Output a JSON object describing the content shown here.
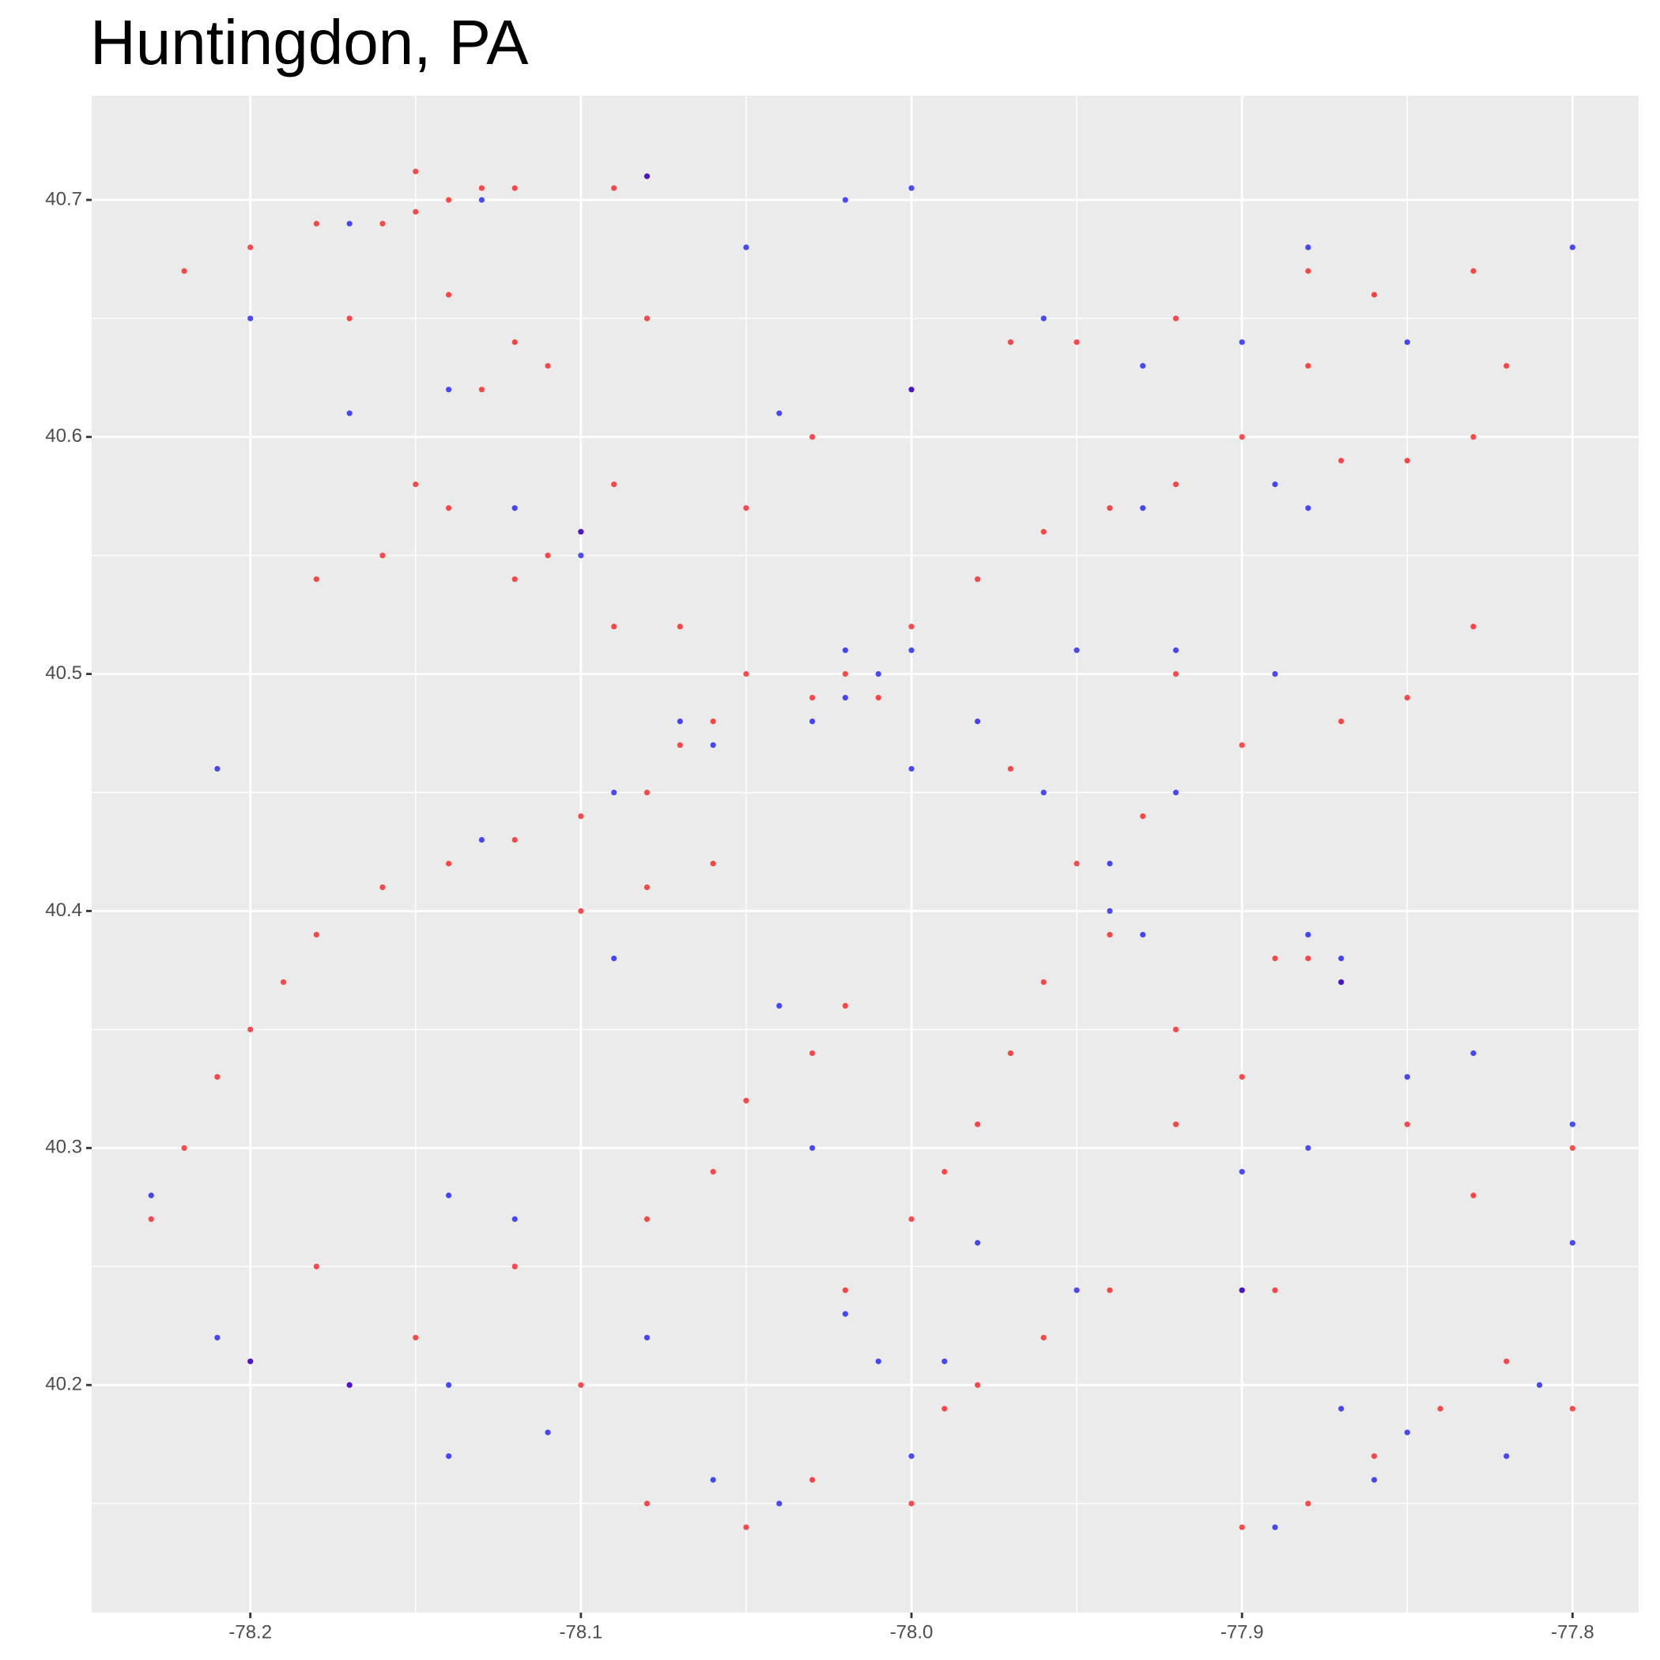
{
  "chart_data": {
    "type": "scatter",
    "title": "Huntingdon, PA",
    "xlim": [
      -78.248,
      -77.78
    ],
    "ylim": [
      40.104,
      40.744
    ],
    "xticks": [
      -78.2,
      -78.1,
      {
        "value": -78,
        "label": "-78.0"
      },
      -77.9,
      -77.8
    ],
    "yticks": [
      40.2,
      40.3,
      40.4,
      40.5,
      40.6,
      40.7
    ],
    "grid": true,
    "alpha": 0.7,
    "series": [
      {
        "color": "#ff0000",
        "x": [
          -78.22,
          -78.2,
          -78.18,
          -78.16,
          -78.15,
          -78.14,
          -78.13,
          -78.12,
          -78.15,
          -78.08,
          -78.09,
          -78.17,
          -78.14,
          -78.12,
          -78.13,
          -78.11,
          -78.08,
          -78.15,
          -78.14,
          -78.16,
          -78.18,
          -78.1,
          -78.11,
          -78.12,
          -78.09,
          -78.05,
          -78.03,
          -78.0,
          -77.97,
          -77.95,
          -77.92,
          -77.88,
          -77.86,
          -77.83,
          -77.82,
          -77.88,
          -77.9,
          -77.87,
          -77.85,
          -77.83,
          -77.98,
          -77.96,
          -77.94,
          -77.92,
          -78.0,
          -78.02,
          -78.01,
          -78.03,
          -78.06,
          -78.07,
          -78.08,
          -78.1,
          -78.12,
          -78.14,
          -78.16,
          -78.18,
          -78.19,
          -78.2,
          -78.21,
          -78.22,
          -78.23,
          -78.1,
          -78.08,
          -78.06,
          -78.05,
          -78.07,
          -78.09,
          -77.97,
          -77.98,
          -77.99,
          -78.0,
          -78.02,
          -78.03,
          -78.05,
          -78.06,
          -78.08,
          -77.98,
          -77.99,
          -77.96,
          -77.94,
          -77.9,
          -77.89,
          -77.88,
          -77.89,
          -77.87,
          -77.9,
          -77.92,
          -77.85,
          -77.83,
          -77.8,
          -77.86,
          -77.84,
          -77.82,
          -77.8,
          -77.88,
          -77.9,
          -78.0,
          -78.03,
          -78.05,
          -78.08,
          -78.1,
          -78.12,
          -78.15,
          -78.18,
          -78.2,
          -78.17,
          -77.93,
          -77.95,
          -77.97,
          -77.92,
          -77.9,
          -77.87,
          -77.85,
          -77.83,
          -77.94,
          -77.96,
          -78.02,
          -77.92
        ],
        "values": [
          40.67,
          40.68,
          40.69,
          40.69,
          40.695,
          40.7,
          40.705,
          40.705,
          40.712,
          40.71,
          40.705,
          40.65,
          40.66,
          40.64,
          40.62,
          40.63,
          40.65,
          40.58,
          40.57,
          40.55,
          40.54,
          40.56,
          40.55,
          40.54,
          40.58,
          40.57,
          40.6,
          40.62,
          40.64,
          40.64,
          40.65,
          40.67,
          40.66,
          40.67,
          40.63,
          40.63,
          40.6,
          40.59,
          40.59,
          40.6,
          40.54,
          40.56,
          40.57,
          40.58,
          40.52,
          40.5,
          40.49,
          40.49,
          40.48,
          40.47,
          40.45,
          40.44,
          40.43,
          40.42,
          40.41,
          40.39,
          40.37,
          40.35,
          40.33,
          40.3,
          40.27,
          40.4,
          40.41,
          40.42,
          40.5,
          40.52,
          40.52,
          40.34,
          40.31,
          40.29,
          40.27,
          40.24,
          40.34,
          40.32,
          40.29,
          40.27,
          40.2,
          40.19,
          40.22,
          40.24,
          40.24,
          40.24,
          40.38,
          40.38,
          40.37,
          40.33,
          40.31,
          40.31,
          40.28,
          40.3,
          40.17,
          40.19,
          40.21,
          40.19,
          40.15,
          40.14,
          40.15,
          40.16,
          40.14,
          40.15,
          40.2,
          40.25,
          40.22,
          40.25,
          40.21,
          40.2,
          40.44,
          40.42,
          40.46,
          40.5,
          40.47,
          40.48,
          40.49,
          40.52,
          40.39,
          40.37,
          40.36,
          40.35
        ]
      },
      {
        "color": "#0000ff",
        "x": [
          -78.2,
          -78.17,
          -78.13,
          -78.08,
          -78.05,
          -78.02,
          -78.0,
          -78.14,
          -78.17,
          -78.1,
          -78.1,
          -78.12,
          -78.02,
          -78.01,
          -78.02,
          -78.0,
          -78.03,
          -78.06,
          -78.07,
          -78.09,
          -78.13,
          -78.04,
          -78.0,
          -77.96,
          -77.93,
          -77.9,
          -77.88,
          -77.85,
          -77.8,
          -77.93,
          -77.89,
          -77.88,
          -77.95,
          -77.92,
          -77.89,
          -77.94,
          -77.94,
          -77.93,
          -77.88,
          -77.87,
          -77.87,
          -77.9,
          -77.88,
          -77.9,
          -77.95,
          -77.99,
          -78.01,
          -78.02,
          -77.98,
          -78.03,
          -78.11,
          -78.14,
          -78.14,
          -78.21,
          -78.2,
          -78.17,
          -78.14,
          -78.12,
          -77.85,
          -77.82,
          -77.81,
          -77.8,
          -77.87,
          -77.86,
          -77.89,
          -78.0,
          -78.04,
          -78.06,
          -78.04,
          -78.08,
          -77.96,
          -77.98,
          -78.0,
          -78.09,
          -77.92,
          -78.23,
          -78.21,
          -77.8,
          -77.83,
          -77.85
        ],
        "values": [
          40.65,
          40.69,
          40.7,
          40.71,
          40.68,
          40.7,
          40.705,
          40.62,
          40.61,
          40.56,
          40.55,
          40.57,
          40.51,
          40.5,
          40.49,
          40.51,
          40.48,
          40.47,
          40.48,
          40.45,
          40.43,
          40.61,
          40.62,
          40.65,
          40.63,
          40.64,
          40.68,
          40.64,
          40.68,
          40.57,
          40.58,
          40.57,
          40.51,
          40.51,
          40.5,
          40.42,
          40.4,
          40.39,
          40.39,
          40.38,
          40.37,
          40.29,
          40.3,
          40.24,
          40.24,
          40.21,
          40.21,
          40.23,
          40.26,
          40.3,
          40.18,
          40.2,
          40.17,
          40.22,
          40.21,
          40.2,
          40.28,
          40.27,
          40.18,
          40.17,
          40.2,
          40.26,
          40.19,
          40.16,
          40.14,
          40.17,
          40.15,
          40.16,
          40.36,
          40.22,
          40.45,
          40.48,
          40.46,
          40.38,
          40.45,
          40.28,
          40.46,
          40.31,
          40.34,
          40.33
        ]
      }
    ]
  }
}
